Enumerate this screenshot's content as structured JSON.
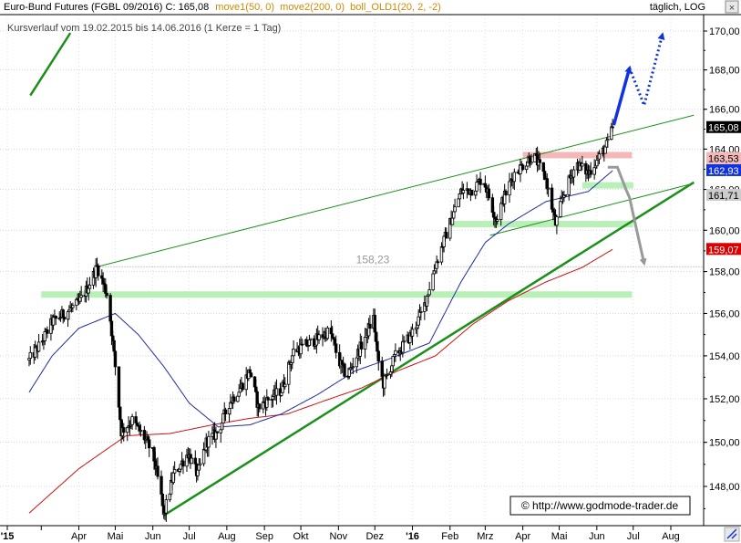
{
  "header": {
    "instrument": "Euro-Bund Futures (FGBL 09/2016) C: 165,08",
    "ind1": "move1(50, 0)",
    "ind2": "move2(200, 0)",
    "ind3": "boll_OLD1(20, 2, -2)",
    "subtitle": "Kursverlauf vom 19.02.2015 bis 14.06.2016 (1 Kerze = 1 Tag)",
    "mode": "täglich, LOG"
  },
  "colors": {
    "candles": "#000000",
    "ma50": "#1f2ea0",
    "ma200": "#cc1111",
    "trend": "#1a8f1a",
    "support_zone": "#b8f0b8",
    "resistance_zone": "#f4b8b8",
    "arrow_up": "#1133dd",
    "arrow_down": "#999999",
    "price_tag": "#000000",
    "tag_red": "#dd0000",
    "tag_blue": "#1133dd",
    "tag_gray": "#888888"
  },
  "chart_data": {
    "type": "candlestick",
    "yscale": "log",
    "ylim": [
      146.5,
      171.0
    ],
    "yticks": [
      148,
      150,
      152,
      154,
      156,
      158,
      160,
      162,
      164,
      166,
      168,
      170
    ],
    "ytick_labels": [
      "148,00",
      "150,00",
      "152,00",
      "154,00",
      "156,00",
      "158,00",
      "160,00",
      "162,00",
      "164,00",
      "166,00",
      "168,00",
      "170,00"
    ],
    "xticks": [
      "'15",
      "Apr",
      "Mai",
      "Jun",
      "Jul",
      "Aug",
      "Sep",
      "Okt",
      "Nov",
      "Dez",
      "'16",
      "Feb",
      "Mrz",
      "Apr",
      "Mai",
      "Jun",
      "Jul",
      "Aug"
    ],
    "price_path": [
      [
        "2015-02-19",
        153.8
      ],
      [
        "2015-03-01",
        154.6
      ],
      [
        "2015-03-10",
        155.6
      ],
      [
        "2015-03-20",
        156.0
      ],
      [
        "2015-04-01",
        156.5
      ],
      [
        "2015-04-08",
        157.2
      ],
      [
        "2015-04-16",
        158.23
      ],
      [
        "2015-04-25",
        156.8
      ],
      [
        "2015-05-01",
        153.5
      ],
      [
        "2015-05-06",
        150.5
      ],
      [
        "2015-05-15",
        151.0
      ],
      [
        "2015-05-25",
        150.2
      ],
      [
        "2015-06-01",
        149.5
      ],
      [
        "2015-06-08",
        147.5
      ],
      [
        "2015-06-10",
        146.7
      ],
      [
        "2015-06-18",
        148.5
      ],
      [
        "2015-06-30",
        149.5
      ],
      [
        "2015-07-08",
        148.5
      ],
      [
        "2015-07-15",
        150.0
      ],
      [
        "2015-07-25",
        150.5
      ],
      [
        "2015-08-03",
        151.8
      ],
      [
        "2015-08-12",
        152.5
      ],
      [
        "2015-08-20",
        153.3
      ],
      [
        "2015-08-27",
        151.6
      ],
      [
        "2015-09-05",
        152.0
      ],
      [
        "2015-09-15",
        152.4
      ],
      [
        "2015-09-25",
        154.2
      ],
      [
        "2015-10-05",
        154.5
      ],
      [
        "2015-10-15",
        154.8
      ],
      [
        "2015-10-25",
        155.2
      ],
      [
        "2015-11-01",
        153.8
      ],
      [
        "2015-11-08",
        153.0
      ],
      [
        "2015-11-20",
        154.5
      ],
      [
        "2015-11-30",
        155.8
      ],
      [
        "2015-12-03",
        154.0
      ],
      [
        "2015-12-08",
        152.7
      ],
      [
        "2015-12-18",
        154.0
      ],
      [
        "2015-12-31",
        155.0
      ],
      [
        "2016-01-10",
        156.2
      ],
      [
        "2016-01-20",
        158.3
      ],
      [
        "2016-01-30",
        160.0
      ],
      [
        "2016-02-10",
        161.9
      ],
      [
        "2016-02-20",
        162.0
      ],
      [
        "2016-02-28",
        162.6
      ],
      [
        "2016-03-10",
        160.5
      ],
      [
        "2016-03-15",
        161.4
      ],
      [
        "2016-03-25",
        162.8
      ],
      [
        "2016-04-01",
        163.2
      ],
      [
        "2016-04-10",
        163.7
      ],
      [
        "2016-04-20",
        162.5
      ],
      [
        "2016-04-28",
        160.3
      ],
      [
        "2016-05-05",
        161.8
      ],
      [
        "2016-05-15",
        163.3
      ],
      [
        "2016-05-25",
        162.8
      ],
      [
        "2016-06-02",
        163.5
      ],
      [
        "2016-06-10",
        164.3
      ],
      [
        "2016-06-14",
        165.08
      ]
    ],
    "ma50_path": [
      [
        "2015-02-19",
        152.3
      ],
      [
        "2015-03-10",
        154.0
      ],
      [
        "2015-04-01",
        155.3
      ],
      [
        "2015-05-01",
        156.0
      ],
      [
        "2015-05-20",
        155.0
      ],
      [
        "2015-06-10",
        153.5
      ],
      [
        "2015-07-01",
        151.8
      ],
      [
        "2015-07-25",
        150.7
      ],
      [
        "2015-08-20",
        150.8
      ],
      [
        "2015-09-15",
        151.3
      ],
      [
        "2015-10-15",
        152.2
      ],
      [
        "2015-11-15",
        153.3
      ],
      [
        "2015-12-15",
        153.9
      ],
      [
        "2016-01-15",
        154.6
      ],
      [
        "2016-02-10",
        157.5
      ],
      [
        "2016-03-01",
        159.4
      ],
      [
        "2016-03-20",
        160.3
      ],
      [
        "2016-04-20",
        161.4
      ],
      [
        "2016-05-25",
        161.9
      ],
      [
        "2016-06-14",
        162.93
      ]
    ],
    "ma200_path": [
      [
        "2015-02-19",
        146.8
      ],
      [
        "2015-04-01",
        148.8
      ],
      [
        "2015-05-10",
        150.3
      ],
      [
        "2015-06-15",
        150.4
      ],
      [
        "2015-07-20",
        150.8
      ],
      [
        "2015-08-20",
        151.1
      ],
      [
        "2015-09-20",
        151.3
      ],
      [
        "2015-10-20",
        151.9
      ],
      [
        "2015-11-20",
        152.5
      ],
      [
        "2015-12-20",
        153.3
      ],
      [
        "2016-01-20",
        154.0
      ],
      [
        "2016-02-20",
        155.5
      ],
      [
        "2016-03-20",
        156.6
      ],
      [
        "2016-04-20",
        157.5
      ],
      [
        "2016-05-20",
        158.2
      ],
      [
        "2016-06-14",
        159.07
      ]
    ],
    "trendlines": [
      {
        "from": [
          "2015-04-16",
          158.23
        ],
        "to": [
          "2016-08-20",
          165.7
        ],
        "width": 1
      },
      {
        "from": [
          "2015-06-10",
          146.7
        ],
        "to": [
          "2016-08-20",
          162.35
        ],
        "width": 2.5
      },
      {
        "from": [
          "2016-03-05",
          159.75
        ],
        "to": [
          "2016-08-20",
          162.3
        ],
        "width": 1
      },
      {
        "from": [
          "2015-02-20",
          166.7
        ],
        "to": [
          "2015-03-25",
          169.9
        ],
        "width": 2.5
      }
    ],
    "zones": [
      {
        "type": "support",
        "from": "2015-03-01",
        "to": "2016-06-30",
        "level": 156.9
      },
      {
        "type": "support",
        "from": "2016-02-01",
        "to": "2016-07-01",
        "level": 160.3
      },
      {
        "type": "support",
        "from": "2016-05-20",
        "to": "2016-07-01",
        "level": 162.2
      },
      {
        "type": "resistance",
        "from": "2016-04-01",
        "to": "2016-06-30",
        "level": 163.7
      }
    ],
    "reference_line": {
      "level": 158.23,
      "label": "158,23"
    },
    "price_tags": [
      {
        "value": "165,08",
        "level": 165.08,
        "style": "black"
      },
      {
        "value": "163,53",
        "level": 163.53,
        "style": "pink"
      },
      {
        "value": "162,93",
        "level": 162.93,
        "style": "blue"
      },
      {
        "value": "161,71",
        "level": 161.71,
        "style": "gray"
      },
      {
        "value": "159,07",
        "level": 159.07,
        "style": "red"
      }
    ],
    "annotations": {
      "arrow_up_path": [
        [
          "2016-06-15",
          165.2
        ],
        [
          "2016-06-28",
          168.1
        ]
      ],
      "arrow_up_dotted": [
        [
          "2016-06-28",
          168.1
        ],
        [
          "2016-07-10",
          166.2
        ],
        [
          "2016-07-25",
          169.8
        ]
      ],
      "arrow_down_path": [
        [
          "2016-06-10",
          163.1
        ],
        [
          "2016-06-18",
          163.1
        ],
        [
          "2016-06-25",
          162.0
        ],
        [
          "2016-06-28",
          161.6
        ],
        [
          "2016-07-02",
          160.5
        ],
        [
          "2016-07-10",
          158.4
        ]
      ]
    }
  },
  "watermark": "© http://www.godmode-trader.de"
}
